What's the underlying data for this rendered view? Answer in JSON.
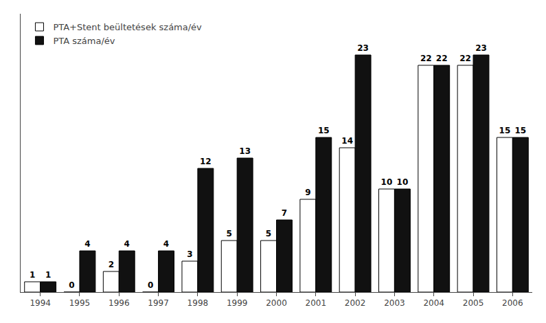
{
  "chart_data": {
    "type": "bar",
    "categories": [
      "1994",
      "1995",
      "1996",
      "1997",
      "1998",
      "1999",
      "2000",
      "2001",
      "2002",
      "2003",
      "2004",
      "2005",
      "2006"
    ],
    "series": [
      {
        "name": "PTA+Stent beültetések száma/év",
        "color": "#ffffff",
        "values": [
          1,
          0,
          2,
          0,
          3,
          5,
          5,
          9,
          14,
          10,
          22,
          22,
          15
        ]
      },
      {
        "name": "PTA száma/év",
        "color": "#111111",
        "values": [
          1,
          4,
          4,
          4,
          12,
          13,
          7,
          15,
          23,
          10,
          22,
          23,
          15
        ]
      }
    ],
    "ylim": [
      0,
      27
    ],
    "grid": false,
    "legend": "upper left",
    "data_labels": true,
    "tick_labels": "x"
  }
}
